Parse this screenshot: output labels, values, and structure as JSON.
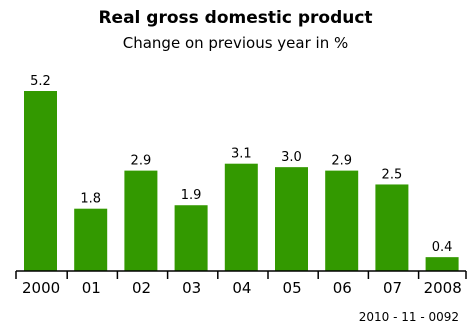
{
  "chart_data": {
    "type": "bar",
    "title": "Real gross domestic product",
    "subtitle": "Change on previous year in %",
    "categories": [
      "2000",
      "01",
      "02",
      "03",
      "04",
      "05",
      "06",
      "07",
      "2008"
    ],
    "values": [
      5.2,
      1.8,
      2.9,
      1.9,
      3.1,
      3.0,
      2.9,
      2.5,
      0.4
    ],
    "value_labels": [
      "5.2",
      "1.8",
      "2.9",
      "1.9",
      "3.1",
      "3.0",
      "2.9",
      "2.5",
      "0.4"
    ],
    "xlabel": "",
    "ylabel": "",
    "ylim": [
      0,
      5.2
    ],
    "grid": false,
    "legend": "none",
    "bar_color": "#339900",
    "axis_color": "#000000"
  },
  "footer": {
    "code": "2010 - 11 - 0092"
  }
}
